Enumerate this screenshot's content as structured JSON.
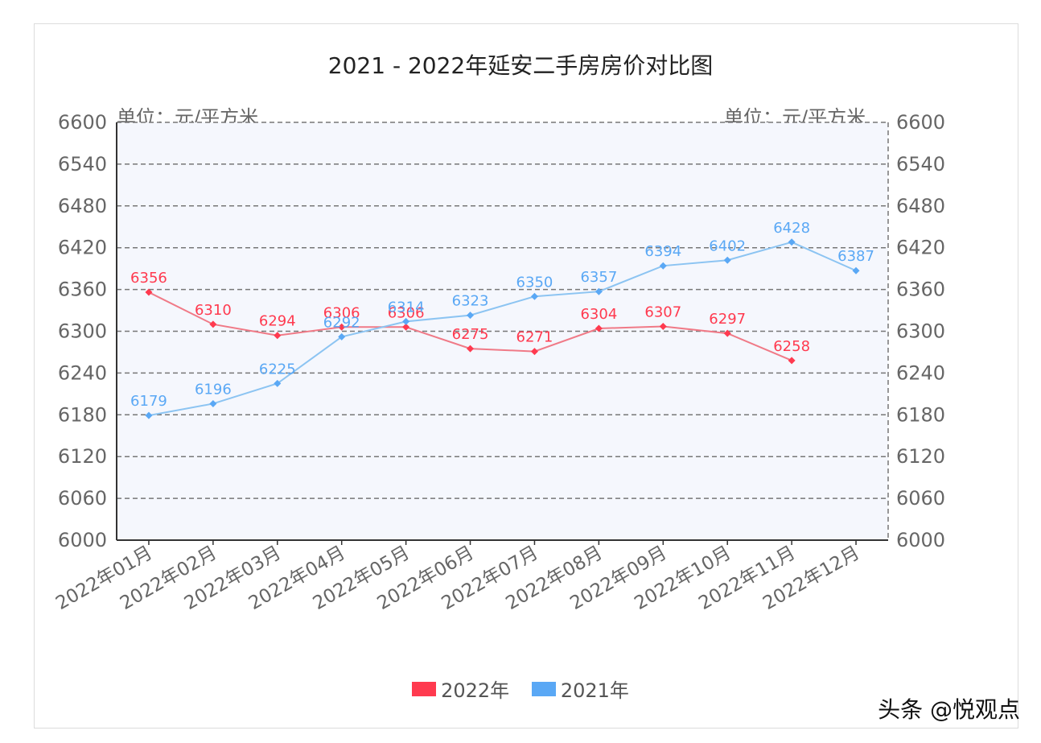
{
  "chart_data": {
    "type": "line",
    "title": "2021 - 2022年延安二手房房价对比图",
    "unit_left": "单位：元/平方米",
    "unit_right": "单位：元/平方米",
    "categories": [
      "2022年01月",
      "2022年02月",
      "2022年03月",
      "2022年04月",
      "2022年05月",
      "2022年06月",
      "2022年07月",
      "2022年08月",
      "2022年09月",
      "2022年10月",
      "2022年11月",
      "2022年12月"
    ],
    "y_ticks": [
      6000,
      6060,
      6120,
      6180,
      6240,
      6300,
      6360,
      6420,
      6480,
      6540,
      6600
    ],
    "ylim": [
      6000,
      6600
    ],
    "grid": true,
    "legend_position": "bottom",
    "series": [
      {
        "name": "2022年",
        "color": "#ff3a4f",
        "line_color": "#f07a87",
        "values": [
          6356,
          6310,
          6294,
          6306,
          6306,
          6275,
          6271,
          6304,
          6307,
          6297,
          6258,
          null
        ]
      },
      {
        "name": "2021年",
        "color": "#5aa8f5",
        "line_color": "#8cc4f2",
        "values": [
          6179,
          6196,
          6225,
          6292,
          6314,
          6323,
          6350,
          6357,
          6394,
          6402,
          6428,
          6387
        ]
      }
    ]
  },
  "legend": {
    "items": [
      "2022年",
      "2021年"
    ]
  },
  "watermark": "头条 @悦观点"
}
